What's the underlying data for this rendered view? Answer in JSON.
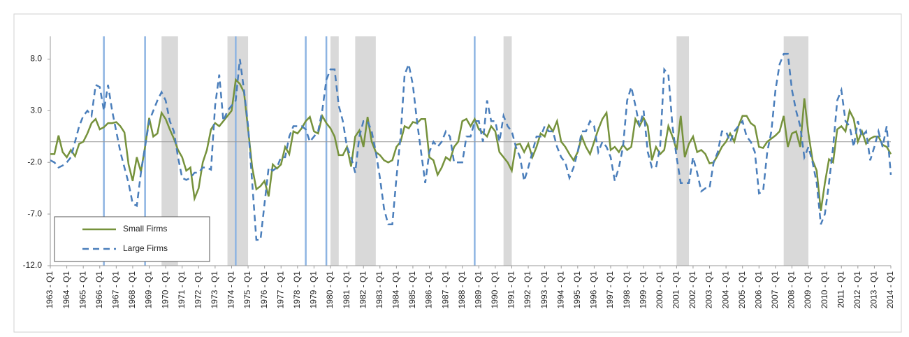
{
  "chart_data": {
    "type": "line",
    "categories": [
      "1963 - Q1",
      null,
      null,
      null,
      "1964 - Q1",
      null,
      null,
      null,
      "1965 - Q1",
      null,
      null,
      null,
      "1966 - Q1",
      null,
      null,
      null,
      "1967 - Q1",
      null,
      null,
      null,
      "1968 - Q1",
      null,
      null,
      null,
      "1969 - Q1",
      null,
      null,
      null,
      "1970 - Q1",
      null,
      null,
      null,
      "1971 - Q1",
      null,
      null,
      null,
      "1972 - Q1",
      null,
      null,
      null,
      "1973 - Q1",
      null,
      null,
      null,
      "1974 - Q1",
      null,
      null,
      null,
      "1975 - Q1",
      null,
      null,
      null,
      "1976 - Q1",
      null,
      null,
      null,
      "1977 - Q1",
      null,
      null,
      null,
      "1978 - Q1",
      null,
      null,
      null,
      "1979 - Q1",
      null,
      null,
      null,
      "1980 - Q1",
      null,
      null,
      null,
      "1981 - Q1",
      null,
      null,
      null,
      "1982 - Q1",
      null,
      null,
      null,
      "1983 - Q1",
      null,
      null,
      null,
      "1984 - Q1",
      null,
      null,
      null,
      "1985 - Q1",
      null,
      null,
      null,
      "1986 - Q1",
      null,
      null,
      null,
      "1987 - Q1",
      null,
      null,
      null,
      "1988 - Q1",
      null,
      null,
      null,
      "1989 - Q1",
      null,
      null,
      null,
      "1990 - Q1",
      null,
      null,
      null,
      "1991 - Q1",
      null,
      null,
      null,
      "1992 - Q1",
      null,
      null,
      null,
      "1993 - Q1",
      null,
      null,
      null,
      "1994 - Q1",
      null,
      null,
      null,
      "1995 - Q1",
      null,
      null,
      null,
      "1996 - Q1",
      null,
      null,
      null,
      "1997 - Q1",
      null,
      null,
      null,
      "1998 - Q1",
      null,
      null,
      null,
      "1999 - Q1",
      null,
      null,
      null,
      "2000 - Q1",
      null,
      null,
      null,
      "2001 - Q1",
      null,
      null,
      null,
      "2002 - Q1",
      null,
      null,
      null,
      "2003 - Q1",
      null,
      null,
      null,
      "2004 - Q1",
      null,
      null,
      null,
      "2005 - Q1",
      null,
      null,
      null,
      "2006 - Q1",
      null,
      null,
      null,
      "2007 - Q1",
      null,
      null,
      null,
      "2008 - Q1",
      null,
      null,
      null,
      "2009 - Q1",
      null,
      null,
      null,
      "2010 - Q1",
      null,
      null,
      null,
      "2011 - Q1",
      null,
      null,
      null,
      "2012 - Q1",
      null,
      null,
      null,
      "2013 - Q1",
      null,
      null,
      null,
      "2014 - Q1"
    ],
    "series": [
      {
        "name": "Small Firms",
        "color": "#76923c",
        "dash": false,
        "values": [
          -1.2,
          -1.2,
          0.6,
          -1.0,
          -1.5,
          -0.8,
          -1.4,
          -0.2,
          0.0,
          0.8,
          1.8,
          2.2,
          1.2,
          1.4,
          1.8,
          1.8,
          1.9,
          1.5,
          0.9,
          -2.2,
          -3.8,
          -1.5,
          -2.9,
          -0.5,
          2.3,
          0.5,
          0.8,
          2.8,
          2.2,
          1.2,
          0.3,
          -0.8,
          -1.5,
          -2.8,
          -2.5,
          -5.5,
          -4.5,
          -2.0,
          -0.8,
          1.2,
          1.8,
          1.5,
          2.0,
          2.5,
          3.0,
          6.0,
          5.6,
          4.8,
          1.2,
          -2.5,
          -4.6,
          -4.3,
          -3.8,
          -5.3,
          -2.2,
          -2.6,
          -2.2,
          -0.5,
          -1.2,
          1.0,
          0.8,
          1.3,
          2.0,
          2.4,
          1.0,
          0.8,
          2.5,
          1.8,
          1.3,
          0.5,
          -1.3,
          -1.3,
          -0.5,
          -2.4,
          0.5,
          1.1,
          -0.5,
          2.4,
          0.0,
          -1.0,
          -1.3,
          -1.8,
          -2.0,
          -1.8,
          -0.5,
          0.0,
          1.5,
          1.3,
          1.9,
          1.8,
          2.2,
          2.2,
          -1.5,
          -1.8,
          -3.2,
          -2.5,
          -1.5,
          -1.8,
          -0.5,
          0.0,
          2.0,
          2.2,
          1.5,
          2.2,
          1.2,
          0.9,
          0.5,
          1.5,
          1.0,
          -1.0,
          -1.5,
          -2.0,
          -2.8,
          -0.3,
          -0.2,
          -1.0,
          -0.2,
          -1.5,
          -0.5,
          0.8,
          0.5,
          1.6,
          1.0,
          2.0,
          0.0,
          -0.5,
          -1.2,
          -1.8,
          -1.0,
          0.5,
          -0.5,
          -1.2,
          0.0,
          1.2,
          2.2,
          2.8,
          -0.8,
          -0.5,
          -1.0,
          -0.3,
          -0.8,
          -0.5,
          2.2,
          1.5,
          2.3,
          1.5,
          -1.8,
          -0.5,
          -1.2,
          -0.8,
          1.5,
          0.5,
          -0.8,
          2.5,
          -1.5,
          -0.2,
          0.5,
          -1.0,
          -0.8,
          -1.2,
          -2.1,
          -2.0,
          -1.3,
          -0.5,
          0.0,
          0.8,
          0.0,
          1.5,
          2.5,
          2.5,
          1.8,
          1.5,
          -0.5,
          -0.6,
          0.0,
          0.3,
          0.6,
          1.0,
          2.5,
          -0.5,
          0.8,
          1.0,
          -0.5,
          4.2,
          0.8,
          -1.8,
          -2.8,
          -6.7,
          -4.0,
          -1.7,
          -2.0,
          1.2,
          1.5,
          1.0,
          3.0,
          2.2,
          0.0,
          1.0,
          -0.2,
          0.3,
          0.5,
          0.5,
          -0.3,
          -0.5,
          -1.2
        ]
      },
      {
        "name": "Large Firms",
        "color": "#4a7ebb",
        "dash": true,
        "values": [
          -1.8,
          -2.0,
          -2.5,
          -2.3,
          -2.0,
          -1.5,
          0.0,
          1.5,
          2.5,
          3.0,
          2.5,
          5.5,
          5.3,
          3.0,
          5.5,
          3.0,
          1.0,
          -1.0,
          -2.5,
          -4.0,
          -6.0,
          -6.2,
          -3.0,
          -0.5,
          2.0,
          3.0,
          4.0,
          4.8,
          4.0,
          2.0,
          1.0,
          -1.5,
          -3.5,
          -3.7,
          -3.5,
          -3.0,
          -3.0,
          -2.5,
          -2.5,
          -2.7,
          3.5,
          6.5,
          2.0,
          3.0,
          3.5,
          4.0,
          8.0,
          5.0,
          1.5,
          -4.0,
          -9.5,
          -9.5,
          -6.0,
          -2.5,
          -2.8,
          -2.5,
          -1.5,
          -1.5,
          0.5,
          1.5,
          1.5,
          1.5,
          1.2,
          0.0,
          0.5,
          1.0,
          3.0,
          6.0,
          7.0,
          7.0,
          3.5,
          2.0,
          -0.5,
          -1.5,
          -3.0,
          0.5,
          2.0,
          2.0,
          1.0,
          -1.0,
          -3.5,
          -6.5,
          -8.0,
          -8.0,
          -3.5,
          0.5,
          6.5,
          7.5,
          5.5,
          2.0,
          -1.0,
          -4.0,
          -1.0,
          0.0,
          -0.5,
          0.0,
          1.0,
          0.5,
          -2.0,
          -2.0,
          -2.0,
          0.5,
          0.5,
          2.0,
          2.0,
          0.0,
          4.0,
          2.0,
          2.0,
          0.0,
          2.5,
          1.5,
          1.0,
          -0.5,
          -1.5,
          -3.8,
          -2.5,
          -1.0,
          0.5,
          0.5,
          1.5,
          1.0,
          1.0,
          -0.5,
          -1.5,
          -2.0,
          -3.5,
          -2.5,
          -1.0,
          1.0,
          1.0,
          2.0,
          1.5,
          -1.0,
          0.0,
          -0.5,
          -1.5,
          -3.8,
          -2.5,
          -0.5,
          4.0,
          5.3,
          3.5,
          1.5,
          3.0,
          -1.0,
          -2.5,
          -2.5,
          -0.5,
          7.0,
          6.5,
          1.5,
          -1.5,
          -4.0,
          -4.0,
          -4.0,
          -1.5,
          -3.0,
          -4.8,
          -4.5,
          -4.5,
          -2.0,
          -1.0,
          1.0,
          1.0,
          0.0,
          1.0,
          1.5,
          2.0,
          0.5,
          0.0,
          -1.0,
          -5.0,
          -4.8,
          -1.0,
          1.0,
          5.0,
          7.5,
          8.5,
          8.5,
          5.0,
          3.0,
          1.5,
          -1.5,
          -0.5,
          -2.0,
          -4.0,
          -8.0,
          -7.0,
          -4.0,
          -0.5,
          4.0,
          5.0,
          2.0,
          1.5,
          -0.5,
          2.0,
          0.5,
          1.0,
          -1.8,
          -0.5,
          1.0,
          -0.5,
          1.5,
          -3.2
        ]
      }
    ],
    "ylim": [
      -12,
      10.2
    ],
    "yticks": [
      {
        "value": 8,
        "label": "8.0"
      },
      {
        "value": 3,
        "label": "3.0"
      },
      {
        "value": -2,
        "label": "-2.0"
      },
      {
        "value": -7,
        "label": "-7.0"
      },
      {
        "value": -12,
        "label": "-12.0"
      }
    ],
    "shaded_periods": [
      [
        1969.75,
        1970.75
      ],
      [
        1973.75,
        1975.0
      ],
      [
        1980.0,
        1980.5
      ],
      [
        1981.5,
        1982.75
      ],
      [
        1990.5,
        1991.0
      ],
      [
        2001.0,
        2001.75
      ],
      [
        2007.5,
        2009.0
      ]
    ],
    "vertical_lines": [
      1966.25,
      1968.75,
      1974.25,
      1978.5,
      1979.75,
      1988.75
    ],
    "shade_color": "#d9d9d9",
    "vline_color": "#8db4e2",
    "legend": "lower left"
  }
}
